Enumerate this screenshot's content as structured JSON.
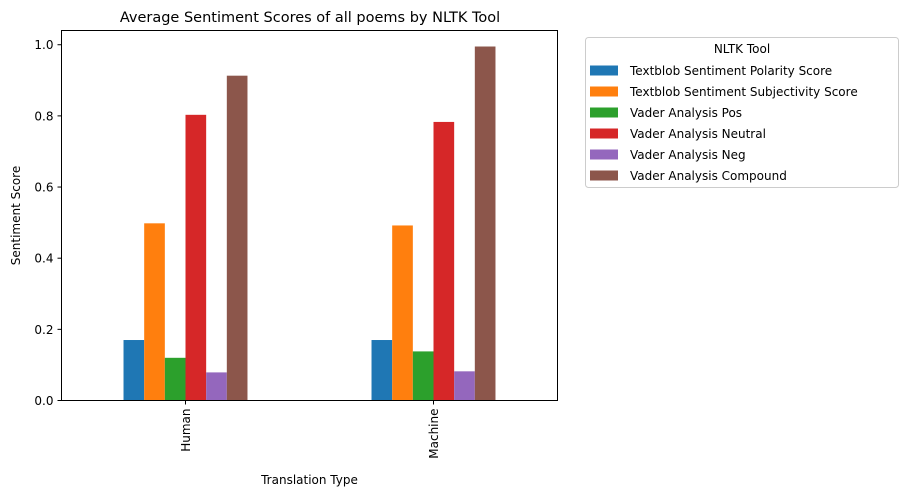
{
  "chart_data": {
    "type": "bar",
    "title": "Average Sentiment Scores of all poems by NLTK Tool",
    "xlabel": "Translation Type",
    "ylabel": "Sentiment Score",
    "categories": [
      "Human",
      "Machine"
    ],
    "ylim": [
      0,
      1.04
    ],
    "yticks": [
      0.0,
      0.2,
      0.4,
      0.6,
      0.8,
      1.0
    ],
    "ytick_labels": [
      "0.0",
      "0.2",
      "0.4",
      "0.6",
      "0.8",
      "1.0"
    ],
    "grid": false,
    "legend": {
      "title": "NLTK Tool",
      "placement": "outside-right-top"
    },
    "series": [
      {
        "name": "Textblob Sentiment Polarity Score",
        "color": "#1f77b4",
        "values": [
          0.17,
          0.17
        ]
      },
      {
        "name": "Textblob Sentiment Subjectivity Score",
        "color": "#ff7f0e",
        "values": [
          0.498,
          0.492
        ]
      },
      {
        "name": "Vader Analysis Pos",
        "color": "#2ca02c",
        "values": [
          0.12,
          0.138
        ]
      },
      {
        "name": "Vader Analysis Neutral",
        "color": "#d62728",
        "values": [
          0.803,
          0.783
        ]
      },
      {
        "name": "Vader Analysis Neg",
        "color": "#9467bd",
        "values": [
          0.079,
          0.082
        ]
      },
      {
        "name": "Vader Analysis Compound",
        "color": "#8c564b",
        "values": [
          0.913,
          0.995
        ]
      }
    ]
  }
}
